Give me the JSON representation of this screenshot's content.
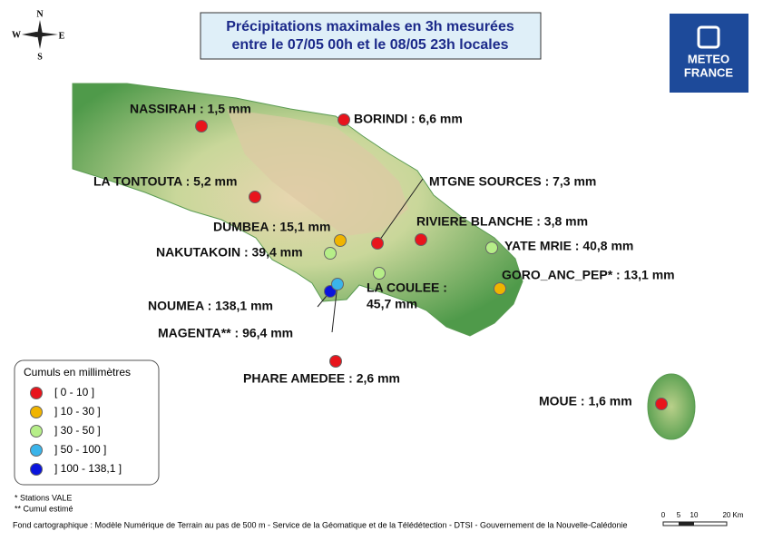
{
  "compass": {
    "north": "N",
    "south": "S",
    "west": "W",
    "east": "E"
  },
  "title": {
    "lines": [
      "Précipitations maximales en 3h mesurées",
      "entre le 07/05 00h et le 08/05 23h locales"
    ]
  },
  "logo": {
    "lines": [
      "METEO",
      "FRANCE"
    ]
  },
  "stations": [
    {
      "lines": [
        "NASSIRAH : 1,5 mm"
      ],
      "color": "#e8141c"
    },
    {
      "lines": [
        "BORINDI : 6,6 mm"
      ],
      "color": "#e8141c"
    },
    {
      "lines": [
        "LA TONTOUTA : 5,2 mm"
      ],
      "color": "#e8141c"
    },
    {
      "lines": [
        "DUMBEA : 15,1 mm"
      ],
      "color": "#f0b400"
    },
    {
      "lines": [
        "NAKUTAKOIN : 39,4 mm"
      ],
      "color": "#b6ee88"
    },
    {
      "lines": [
        "MTGNE SOURCES : 7,3 mm"
      ],
      "color": "#e8141c"
    },
    {
      "lines": [
        "RIVIERE BLANCHE : 3,8 mm"
      ],
      "color": "#e8141c"
    },
    {
      "lines": [
        "YATE MRIE : 40,8 mm"
      ],
      "color": "#b6ee88"
    },
    {
      "lines": [
        "GORO_ANC_PEP* : 13,1 mm"
      ],
      "color": "#f0b400"
    },
    {
      "lines": [
        "LA COULEE :",
        "45,7 mm"
      ],
      "color": "#b6ee88"
    },
    {
      "lines": [
        "NOUMEA : 138,1 mm"
      ],
      "color": "#0a14dc"
    },
    {
      "lines": [
        "MAGENTA** : 96,4 mm"
      ],
      "color": "#3ab4ea"
    },
    {
      "lines": [
        "PHARE AMEDEE : 2,6 mm"
      ],
      "color": "#e8141c"
    },
    {
      "lines": [
        "MOUE : 1,6 mm"
      ],
      "color": "#e8141c"
    }
  ],
  "legend": {
    "title": "Cumuls en millimètres",
    "items": [
      {
        "label": "[ 0 - 10 ]",
        "color": "#e8141c"
      },
      {
        "label": "] 10 - 30 ]",
        "color": "#f0b400"
      },
      {
        "label": "] 30 - 50 ]",
        "color": "#b6ee88"
      },
      {
        "label": "] 50 - 100 ]",
        "color": "#3ab4ea"
      },
      {
        "label": "] 100 - 138,1 ]",
        "color": "#0a14dc"
      }
    ]
  },
  "notes": [
    "* Stations VALE",
    "** Cumul estimé"
  ],
  "source": "Fond cartographique : Modèle Numérique de Terrain au pas de 500 m - Service de la Géomatique et de la Télédétection - DTSI - Gouvernement de la Nouvelle-Calédonie",
  "scale_bar": {
    "labels": [
      "0",
      "5",
      "10",
      "20 Km"
    ]
  }
}
